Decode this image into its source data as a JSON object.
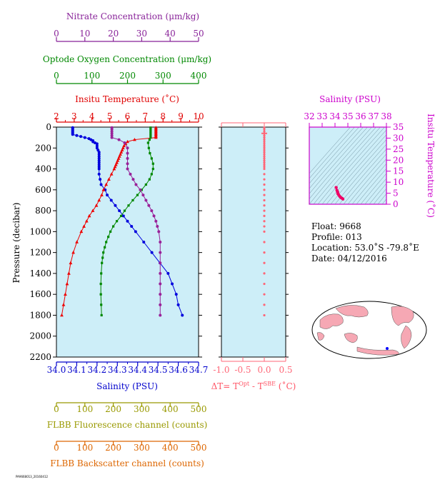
{
  "info": {
    "float": "Float:  9668",
    "profile": "Profile:  013",
    "location": "Location:  53.0˚S  -79.8˚E",
    "date": "Date:  04/12/2016"
  },
  "footer_code": "PA9668013_20160412",
  "chart_data": [
    {
      "id": "profile-panel",
      "type": "line",
      "ylabel": "Pressure (decibar)",
      "ylim": [
        2200,
        0
      ],
      "yticks": [
        0,
        200,
        400,
        600,
        800,
        1000,
        1200,
        1400,
        1600,
        1800,
        2000,
        2200
      ],
      "background": "#cdeef8",
      "axes": [
        {
          "key": "salinity",
          "label": "Salinity (PSU)",
          "position": "bottom",
          "color": "#0000cc",
          "range": [
            34.0,
            34.7
          ],
          "ticks": [
            "34.0",
            "34.1",
            "34.2",
            "34.3",
            "34.4",
            "34.5",
            "34.6",
            "34.7"
          ]
        },
        {
          "key": "temperature",
          "label": "Insitu Temperature (˚C)",
          "position": "top",
          "color": "#e00000",
          "range": [
            2,
            10
          ],
          "ticks": [
            "2",
            "3",
            "4",
            "5",
            "6",
            "7",
            "8",
            "9",
            "10"
          ]
        },
        {
          "key": "oxygen",
          "label": "Optode Oxygen Concentration (μm/kg)",
          "position": "top",
          "color": "#008800",
          "range": [
            0,
            400
          ],
          "ticks": [
            "0",
            "100",
            "200",
            "300",
            "400"
          ]
        },
        {
          "key": "nitrate",
          "label": "Nitrate Concentration (μm/kg)",
          "position": "top",
          "color": "#882299",
          "range": [
            0,
            50
          ],
          "ticks": [
            "0",
            "10",
            "20",
            "30",
            "40",
            "50"
          ]
        },
        {
          "key": "fluorescence",
          "label": "FLBB Fluorescence channel (counts)",
          "position": "bottom",
          "color": "#999900",
          "range": [
            0,
            500
          ],
          "ticks": [
            "0",
            "100",
            "200",
            "300",
            "400",
            "500"
          ]
        },
        {
          "key": "backscatter",
          "label": "FLBB Backscatter channel (counts)",
          "position": "bottom",
          "color": "#dd6600",
          "range": [
            0,
            500
          ],
          "ticks": [
            "0",
            "100",
            "200",
            "300",
            "400",
            "500"
          ]
        }
      ],
      "series": [
        {
          "axis": "salinity",
          "color": "#0000dd",
          "marker": "circle",
          "pressure": [
            5,
            10,
            20,
            30,
            40,
            50,
            60,
            70,
            80,
            90,
            100,
            110,
            120,
            130,
            140,
            150,
            160,
            180,
            200,
            220,
            240,
            260,
            280,
            300,
            320,
            340,
            360,
            380,
            400,
            450,
            500,
            550,
            600,
            650,
            700,
            750,
            800,
            850,
            900,
            950,
            1000,
            1100,
            1200,
            1300,
            1400,
            1500,
            1600,
            1700,
            1800
          ],
          "values": [
            34.08,
            34.08,
            34.08,
            34.08,
            34.08,
            34.08,
            34.08,
            34.08,
            34.1,
            34.12,
            34.14,
            34.16,
            34.17,
            34.18,
            34.18,
            34.19,
            34.2,
            34.2,
            34.2,
            34.205,
            34.21,
            34.21,
            34.21,
            34.21,
            34.21,
            34.21,
            34.21,
            34.21,
            34.21,
            34.21,
            34.215,
            34.22,
            34.24,
            34.25,
            34.27,
            34.29,
            34.31,
            34.33,
            34.35,
            34.37,
            34.39,
            34.43,
            34.47,
            34.51,
            34.55,
            34.57,
            34.59,
            34.6,
            34.62
          ]
        },
        {
          "axis": "temperature",
          "color": "#ee0000",
          "marker": "triangle",
          "pressure": [
            5,
            10,
            20,
            30,
            40,
            50,
            60,
            70,
            80,
            90,
            100,
            120,
            140,
            160,
            180,
            200,
            220,
            240,
            260,
            280,
            300,
            320,
            340,
            360,
            380,
            400,
            450,
            500,
            550,
            600,
            650,
            700,
            750,
            800,
            850,
            900,
            950,
            1000,
            1100,
            1200,
            1300,
            1400,
            1500,
            1600,
            1700,
            1800
          ],
          "values": [
            7.6,
            7.6,
            7.6,
            7.6,
            7.6,
            7.6,
            7.6,
            7.6,
            7.6,
            7.6,
            7.6,
            6.4,
            6.0,
            5.9,
            5.8,
            5.75,
            5.7,
            5.65,
            5.6,
            5.55,
            5.5,
            5.45,
            5.4,
            5.35,
            5.3,
            5.25,
            5.1,
            4.95,
            4.8,
            4.65,
            4.55,
            4.4,
            4.25,
            4.05,
            3.85,
            3.7,
            3.55,
            3.4,
            3.15,
            2.95,
            2.8,
            2.7,
            2.6,
            2.5,
            2.4,
            2.3
          ]
        },
        {
          "axis": "oxygen",
          "color": "#008800",
          "marker": "square",
          "pressure": [
            5,
            20,
            40,
            60,
            80,
            100,
            120,
            150,
            200,
            250,
            300,
            350,
            400,
            450,
            500,
            550,
            600,
            650,
            700,
            750,
            800,
            850,
            900,
            950,
            1000,
            1050,
            1100,
            1150,
            1200,
            1250,
            1300,
            1400,
            1500,
            1600,
            1700,
            1800
          ],
          "values": [
            265,
            265,
            265,
            265,
            265,
            265,
            262,
            258,
            260,
            263,
            268,
            272,
            272,
            268,
            262,
            252,
            240,
            228,
            215,
            203,
            192,
            182,
            170,
            160,
            152,
            146,
            140,
            136,
            132,
            130,
            128,
            126,
            125,
            125,
            126,
            127
          ]
        },
        {
          "axis": "nitrate",
          "color": "#992299",
          "marker": "circle",
          "pressure": [
            5,
            20,
            40,
            60,
            80,
            100,
            120,
            150,
            200,
            250,
            300,
            350,
            400,
            450,
            500,
            550,
            600,
            650,
            700,
            750,
            800,
            850,
            900,
            950,
            1000,
            1100,
            1200,
            1300,
            1400,
            1500,
            1600,
            1700,
            1800
          ],
          "values": [
            19.5,
            19.5,
            19.5,
            19.5,
            19.5,
            19.5,
            22,
            24,
            25,
            25,
            25,
            25,
            25,
            26,
            27,
            28,
            29.5,
            30.5,
            31.5,
            32.5,
            33.5,
            34.3,
            35,
            35.5,
            36,
            36.5,
            36.5,
            36.5,
            36.5,
            36.5,
            36.5,
            36.5,
            36.5
          ]
        }
      ]
    },
    {
      "id": "delta-t-panel",
      "type": "scatter",
      "xlabel": "ΔT= T",
      "xlabel_sup1": "Opt",
      "xlabel_mid": " - T",
      "xlabel_sup2": "SBE",
      "xlabel_unit": " (˚C)",
      "xlim": [
        -1.0,
        0.5
      ],
      "xticks": [
        "-1.0",
        "-0.5",
        "0.0",
        "0.5"
      ],
      "ylim": [
        2200,
        0
      ],
      "color": "#ff6677",
      "pressure": [
        5,
        20,
        40,
        60,
        80,
        100,
        120,
        140,
        160,
        180,
        200,
        220,
        240,
        260,
        280,
        300,
        320,
        340,
        360,
        380,
        400,
        450,
        500,
        550,
        600,
        650,
        700,
        750,
        800,
        850,
        900,
        950,
        1000,
        1100,
        1200,
        1300,
        1400,
        1500,
        1600,
        1700,
        1800
      ],
      "values": [
        0.0,
        0.0,
        0.0,
        0.0,
        0.0,
        0.0,
        0.0,
        0.0,
        0.0,
        0.0,
        0.0,
        0.0,
        0.0,
        0.0,
        0.0,
        0.0,
        0.0,
        0.0,
        0.0,
        0.0,
        0.0,
        0.0,
        0.0,
        0.0,
        0.0,
        0.0,
        0.0,
        0.0,
        0.0,
        0.0,
        0.0,
        0.0,
        0.0,
        0.0,
        0.0,
        0.0,
        0.0,
        0.0,
        0.0,
        0.0,
        0.0
      ]
    },
    {
      "id": "ts-panel",
      "type": "scatter",
      "xlabel": "Salinity (PSU)",
      "ylabel": "Insitu Temperature (˚C)",
      "xlim": [
        32,
        38
      ],
      "ylim": [
        0,
        35
      ],
      "xticks": [
        "32",
        "33",
        "34",
        "35",
        "36",
        "37",
        "38"
      ],
      "yticks": [
        "0",
        "5",
        "10",
        "15",
        "20",
        "25",
        "30",
        "35"
      ],
      "color": "#cc00cc",
      "point_color": "#ee0066",
      "salinity": [
        34.08,
        34.1,
        34.14,
        34.17,
        34.2,
        34.21,
        34.21,
        34.22,
        34.24,
        34.27,
        34.31,
        34.35,
        34.39,
        34.43,
        34.47,
        34.51,
        34.55,
        34.59,
        34.62
      ],
      "temperature": [
        7.6,
        7.6,
        6.4,
        6.0,
        5.75,
        5.5,
        5.25,
        4.8,
        4.65,
        4.4,
        4.05,
        3.7,
        3.4,
        3.15,
        2.95,
        2.8,
        2.7,
        2.5,
        2.3
      ]
    }
  ]
}
